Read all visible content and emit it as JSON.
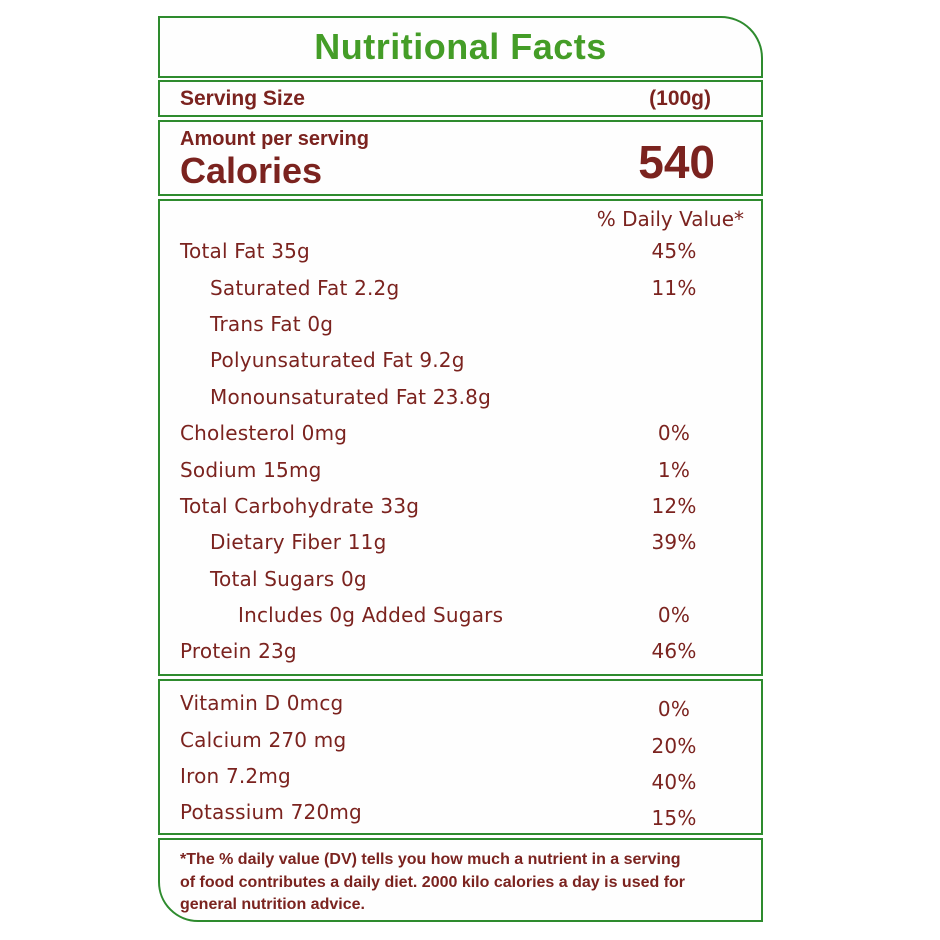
{
  "colors": {
    "border_green": "#2e8b2e",
    "title_green": "#449d27",
    "text_maroon": "#7b231f"
  },
  "header": {
    "title": "Nutritional Facts"
  },
  "serving": {
    "label": "Serving Size",
    "value": "(100g)"
  },
  "calories": {
    "eyebrow": "Amount per serving",
    "label": "Calories",
    "value": "540"
  },
  "daily_value_header": "% Daily Value*",
  "nutrients": [
    {
      "label": "Total Fat 35g",
      "dv": "45%",
      "indent": 0
    },
    {
      "label": "Saturated Fat 2.2g",
      "dv": "11%",
      "indent": 1
    },
    {
      "label": "Trans Fat 0g",
      "dv": "",
      "indent": 1
    },
    {
      "label": "Polyunsaturated Fat 9.2g",
      "dv": "",
      "indent": 1
    },
    {
      "label": "Monounsaturated Fat 23.8g",
      "dv": "",
      "indent": 1
    },
    {
      "label": "Cholesterol 0mg",
      "dv": "0%",
      "indent": 0
    },
    {
      "label": "Sodium 15mg",
      "dv": "1%",
      "indent": 0
    },
    {
      "label": "Total Carbohydrate 33g",
      "dv": "12%",
      "indent": 0
    },
    {
      "label": "Dietary Fiber 11g",
      "dv": "39%",
      "indent": 1
    },
    {
      "label": "Total Sugars 0g",
      "dv": "",
      "indent": 1
    },
    {
      "label": "Includes 0g Added Sugars",
      "dv": "0%",
      "indent": 2
    },
    {
      "label": "Protein 23g",
      "dv": "46%",
      "indent": 0
    }
  ],
  "vitamins": [
    {
      "label": "Vitamin D 0mcg",
      "dv": "0%"
    },
    {
      "label": "Calcium 270 mg",
      "dv": "20%"
    },
    {
      "label": "Iron 7.2mg",
      "dv": "40%"
    },
    {
      "label": "Potassium 720mg",
      "dv": "15%"
    }
  ],
  "footnote_lines": [
    "*The % daily value (DV) tells you how much a nutrient in a serving",
    "of food contributes a daily diet. 2000 kilo calories a day is used for",
    "general nutrition advice."
  ]
}
